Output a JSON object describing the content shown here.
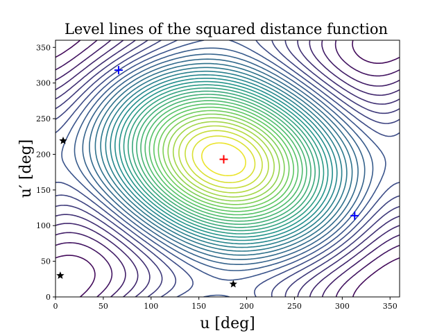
{
  "chart_data": {
    "type": "contour",
    "title": "Level lines of the squared distance function",
    "xlabel": "u [deg]",
    "ylabel": "u′ [deg]",
    "xlim": [
      0,
      360
    ],
    "ylim": [
      0,
      360
    ],
    "xticks": [
      0,
      50,
      100,
      150,
      200,
      250,
      300,
      350
    ],
    "yticks": [
      0,
      50,
      100,
      150,
      200,
      250,
      300,
      350
    ],
    "grid": false,
    "colormap": [
      "#440154",
      "#3b528b",
      "#21918c",
      "#5ec962",
      "#fde725"
    ],
    "levels": 34,
    "maximum": {
      "u": 176,
      "u_prime": 193,
      "marker": "plus",
      "color": "#ff0000"
    },
    "minima": [
      {
        "u": 66,
        "u_prime": 318,
        "marker": "plus",
        "color": "#0000ff"
      },
      {
        "u": 313,
        "u_prime": 114,
        "marker": "plus",
        "color": "#0000ff"
      }
    ],
    "saddles": [
      {
        "u": 8,
        "u_prime": 219,
        "marker": "star",
        "color": "#000000"
      },
      {
        "u": 5,
        "u_prime": 30,
        "marker": "star",
        "color": "#000000"
      },
      {
        "u": 186,
        "u_prime": 18,
        "marker": "star",
        "color": "#000000"
      }
    ]
  }
}
